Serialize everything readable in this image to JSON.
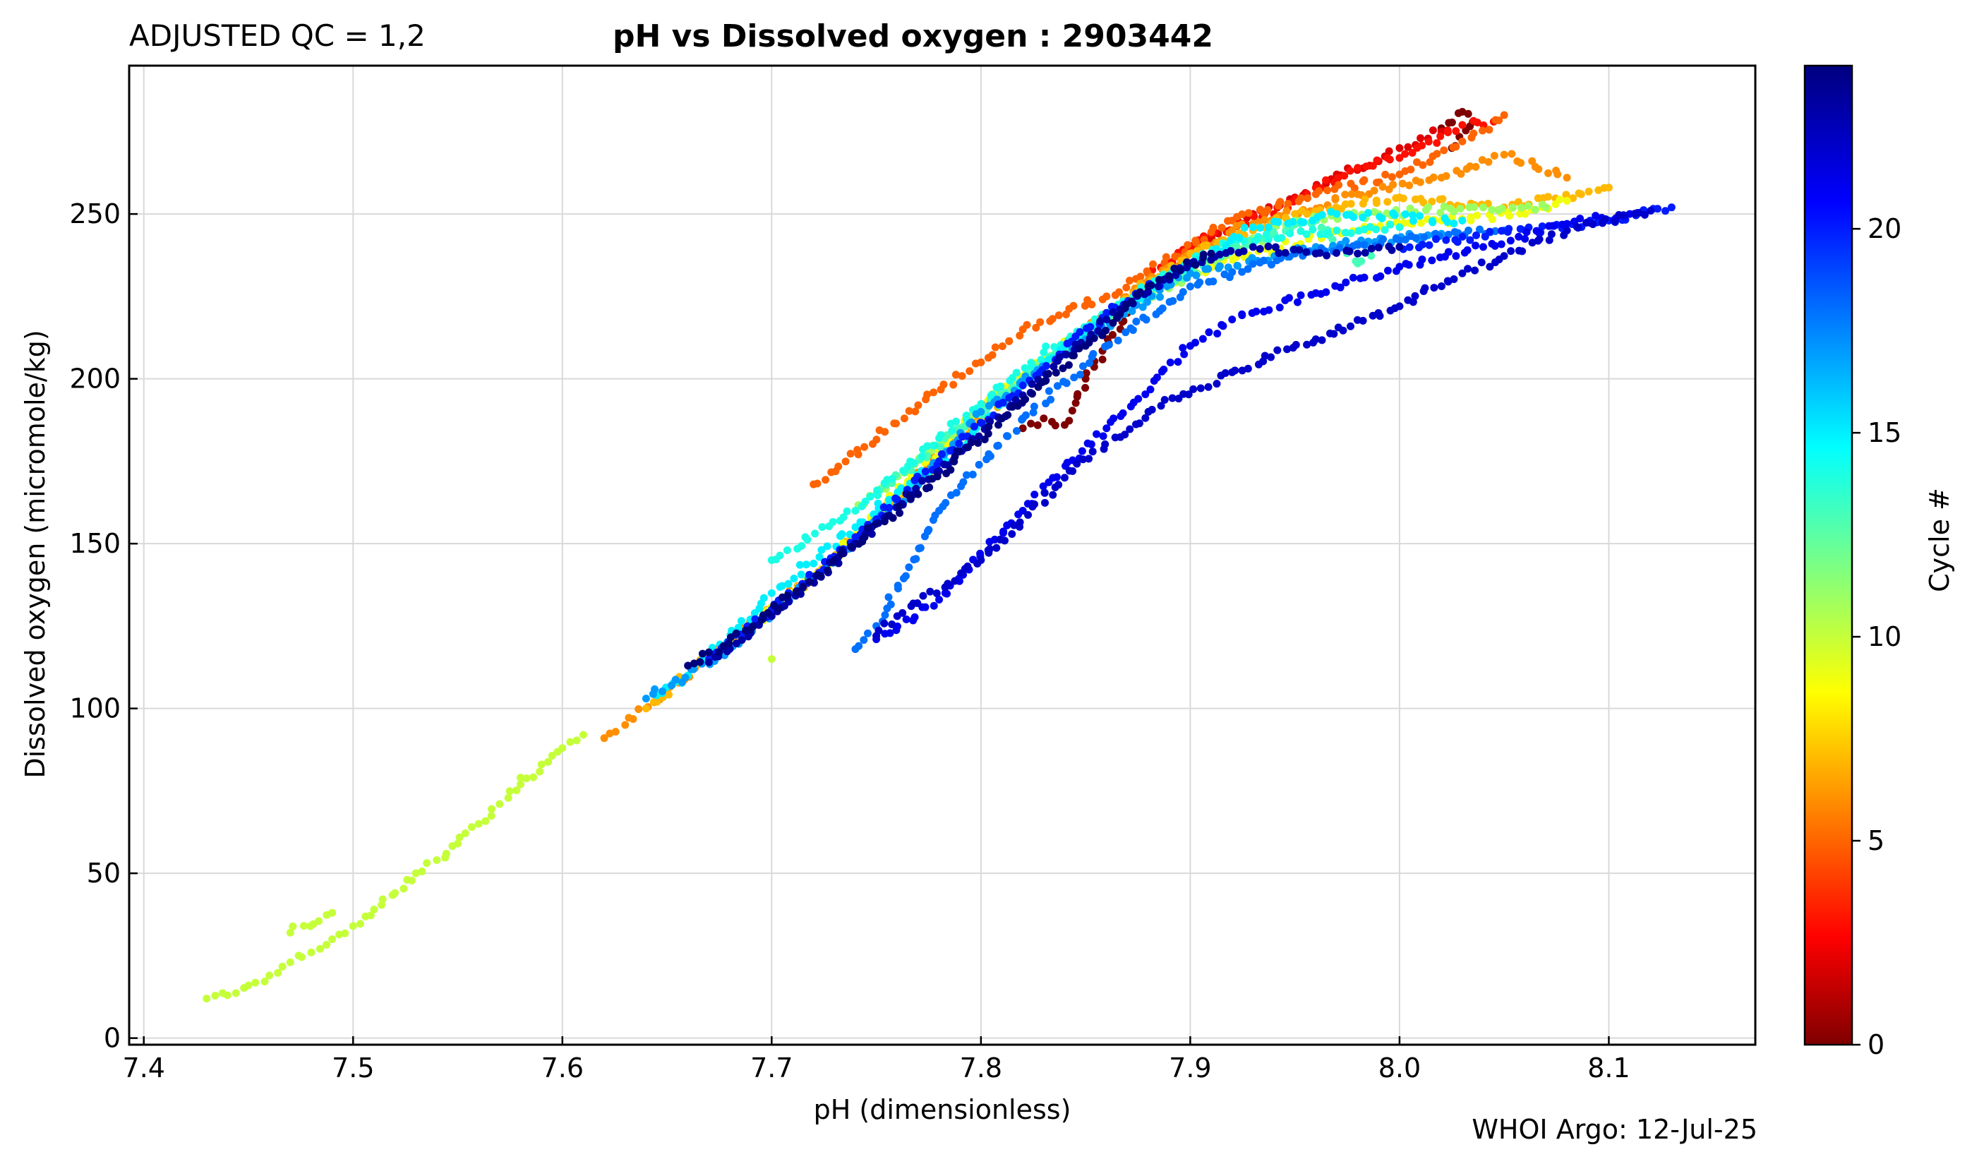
{
  "header": {
    "qc_label": "ADJUSTED QC = 1,2",
    "title": "pH vs Dissolved oxygen : 2903442"
  },
  "footer": {
    "credit": "WHOI Argo: 12-Jul-25"
  },
  "colorbar": {
    "label": "Cycle #",
    "range": [
      0,
      24
    ],
    "ticks": [
      "0",
      "5",
      "10",
      "15",
      "20"
    ],
    "colormap": "jet"
  },
  "colors": {
    "grid": "#d9d9d9",
    "axis": "#000000"
  },
  "chart_data": {
    "type": "scatter",
    "title": "pH vs Dissolved oxygen : 2903442",
    "xlabel": "pH  (dimensionless)",
    "ylabel": "Dissolved oxygen  (micromole/kg)",
    "xlim": [
      7.393,
      8.17
    ],
    "ylim": [
      -2,
      295
    ],
    "xticks": [
      "7.4",
      "7.5",
      "7.6",
      "7.7",
      "7.8",
      "7.9",
      "8.0",
      "8.1"
    ],
    "yticks": [
      "0",
      "50",
      "100",
      "150",
      "200",
      "250"
    ],
    "grid": true,
    "color_by": "cycle",
    "series": [
      {
        "cycle": 0,
        "points": [
          [
            7.82,
            185
          ],
          [
            7.83,
            188
          ],
          [
            7.84,
            186
          ],
          [
            7.85,
            200
          ],
          [
            7.87,
            220
          ],
          [
            8.02,
            276
          ],
          [
            8.03,
            281
          ],
          [
            8.035,
            278
          ],
          [
            8.025,
            270
          ]
        ]
      },
      {
        "cycle": 2,
        "points": [
          [
            7.9,
            238
          ],
          [
            7.93,
            250
          ],
          [
            7.95,
            255
          ],
          [
            7.97,
            262
          ],
          [
            7.99,
            266
          ],
          [
            8.0,
            270
          ],
          [
            8.01,
            273
          ],
          [
            8.02,
            275
          ]
        ]
      },
      {
        "cycle": 3,
        "points": [
          [
            7.88,
            232
          ],
          [
            7.91,
            244
          ],
          [
            7.94,
            250
          ],
          [
            7.96,
            258
          ],
          [
            7.98,
            264
          ],
          [
            8.0,
            267
          ],
          [
            8.03,
            277
          ],
          [
            8.045,
            278
          ]
        ]
      },
      {
        "cycle": 5,
        "points": [
          [
            7.72,
            168
          ],
          [
            7.77,
            192
          ],
          [
            7.8,
            205
          ],
          [
            7.82,
            215
          ],
          [
            7.86,
            225
          ],
          [
            7.92,
            248
          ],
          [
            7.96,
            256
          ],
          [
            8.0,
            262
          ],
          [
            8.03,
            272
          ],
          [
            8.05,
            280
          ]
        ]
      },
      {
        "cycle": 6,
        "points": [
          [
            7.62,
            91
          ],
          [
            7.63,
            95
          ],
          [
            7.65,
            105
          ],
          [
            7.67,
            116
          ],
          [
            7.7,
            130
          ],
          [
            7.73,
            145
          ],
          [
            7.76,
            165
          ],
          [
            7.8,
            190
          ],
          [
            7.84,
            210
          ],
          [
            7.88,
            230
          ],
          [
            7.92,
            245
          ],
          [
            7.98,
            256
          ],
          [
            8.02,
            261
          ],
          [
            8.05,
            268
          ],
          [
            8.08,
            261
          ]
        ]
      },
      {
        "cycle": 7,
        "points": [
          [
            7.64,
            100
          ],
          [
            7.66,
            110
          ],
          [
            7.69,
            125
          ],
          [
            7.72,
            140
          ],
          [
            7.75,
            158
          ],
          [
            7.78,
            175
          ],
          [
            7.82,
            200
          ],
          [
            7.86,
            220
          ],
          [
            7.9,
            238
          ],
          [
            7.95,
            250
          ],
          [
            8.0,
            255
          ],
          [
            8.05,
            252
          ],
          [
            8.1,
            258
          ]
        ]
      },
      {
        "cycle": 9,
        "points": [
          [
            7.68,
            120
          ],
          [
            7.72,
            140
          ],
          [
            7.76,
            165
          ],
          [
            7.8,
            192
          ],
          [
            7.85,
            215
          ],
          [
            7.9,
            232
          ],
          [
            7.97,
            245
          ],
          [
            8.02,
            248
          ],
          [
            8.06,
            250
          ],
          [
            8.08,
            254
          ]
        ]
      },
      {
        "cycle": 10,
        "points": [
          [
            7.43,
            12
          ],
          [
            7.44,
            13
          ],
          [
            7.45,
            16
          ],
          [
            7.46,
            19
          ],
          [
            7.47,
            23
          ],
          [
            7.48,
            26
          ],
          [
            7.49,
            30
          ],
          [
            7.5,
            34
          ],
          [
            7.51,
            39
          ],
          [
            7.52,
            44
          ],
          [
            7.53,
            50
          ],
          [
            7.54,
            54
          ],
          [
            7.55,
            59
          ],
          [
            7.56,
            65
          ],
          [
            7.57,
            71
          ],
          [
            7.58,
            77
          ],
          [
            7.59,
            83
          ],
          [
            7.6,
            88
          ],
          [
            7.61,
            92
          ],
          [
            7.7,
            115
          ],
          [
            7.58,
            79
          ],
          [
            7.49,
            38
          ],
          [
            7.47,
            32
          ]
        ]
      },
      {
        "cycle": 11,
        "points": [
          [
            7.74,
            160
          ],
          [
            7.78,
            180
          ],
          [
            7.82,
            200
          ],
          [
            7.86,
            218
          ],
          [
            7.9,
            232
          ],
          [
            7.95,
            248
          ],
          [
            7.99,
            250
          ],
          [
            8.04,
            252
          ],
          [
            8.07,
            252
          ]
        ]
      },
      {
        "cycle": 13,
        "points": [
          [
            7.75,
            165
          ],
          [
            7.79,
            185
          ],
          [
            7.83,
            205
          ],
          [
            7.87,
            222
          ],
          [
            7.92,
            240
          ],
          [
            7.96,
            248
          ],
          [
            7.98,
            235
          ],
          [
            7.99,
            241
          ]
        ]
      },
      {
        "cycle": 14,
        "points": [
          [
            7.7,
            145
          ],
          [
            7.74,
            160
          ],
          [
            7.78,
            182
          ],
          [
            7.83,
            208
          ],
          [
            7.88,
            228
          ],
          [
            7.92,
            242
          ],
          [
            7.97,
            245
          ],
          [
            8.0,
            246
          ]
        ]
      },
      {
        "cycle": 15,
        "points": [
          [
            7.645,
            104
          ],
          [
            7.66,
            110
          ],
          [
            7.7,
            135
          ],
          [
            7.74,
            155
          ],
          [
            7.79,
            180
          ],
          [
            7.84,
            210
          ],
          [
            7.89,
            230
          ],
          [
            7.93,
            246
          ],
          [
            7.97,
            250
          ],
          [
            8.03,
            248
          ]
        ]
      },
      {
        "cycle": 17,
        "points": [
          [
            7.64,
            103
          ],
          [
            7.68,
            118
          ],
          [
            7.72,
            140
          ],
          [
            7.76,
            162
          ],
          [
            7.8,
            190
          ],
          [
            7.85,
            212
          ],
          [
            7.9,
            232
          ],
          [
            7.96,
            240
          ],
          [
            8.02,
            244
          ]
        ]
      },
      {
        "cycle": 18,
        "points": [
          [
            7.74,
            118
          ],
          [
            7.75,
            125
          ],
          [
            7.78,
            160
          ],
          [
            7.82,
            188
          ],
          [
            7.86,
            210
          ],
          [
            7.9,
            228
          ],
          [
            7.95,
            238
          ],
          [
            8.0,
            242
          ],
          [
            8.05,
            245
          ]
        ]
      },
      {
        "cycle": 20,
        "points": [
          [
            7.67,
            115
          ],
          [
            7.7,
            130
          ],
          [
            7.74,
            152
          ],
          [
            7.78,
            175
          ],
          [
            7.82,
            198
          ],
          [
            7.86,
            220
          ],
          [
            7.9,
            235
          ],
          [
            8.0,
            240
          ],
          [
            8.06,
            245
          ],
          [
            8.1,
            248
          ],
          [
            8.13,
            252
          ]
        ]
      },
      {
        "cycle": 21,
        "points": [
          [
            7.75,
            121
          ],
          [
            7.78,
            133
          ],
          [
            7.82,
            160
          ],
          [
            7.86,
            185
          ],
          [
            7.9,
            210
          ],
          [
            7.92,
            218
          ],
          [
            7.96,
            226
          ],
          [
            8.0,
            234
          ],
          [
            8.04,
            240
          ],
          [
            8.08,
            247
          ],
          [
            8.11,
            250
          ]
        ]
      },
      {
        "cycle": 22,
        "points": [
          [
            7.75,
            122
          ],
          [
            7.76,
            128
          ],
          [
            7.8,
            145
          ],
          [
            7.84,
            170
          ],
          [
            7.88,
            190
          ],
          [
            7.92,
            202
          ],
          [
            7.96,
            212
          ],
          [
            8.0,
            222
          ],
          [
            8.03,
            232
          ],
          [
            8.08,
            245
          ],
          [
            8.12,
            251
          ]
        ]
      },
      {
        "cycle": 23,
        "points": [
          [
            7.67,
            114
          ],
          [
            7.7,
            128
          ],
          [
            7.74,
            150
          ],
          [
            7.78,
            172
          ],
          [
            7.82,
            195
          ],
          [
            7.86,
            218
          ],
          [
            7.9,
            235
          ],
          [
            7.93,
            240
          ],
          [
            7.96,
            238
          ],
          [
            7.98,
            238
          ],
          [
            8.0,
            240
          ]
        ]
      },
      {
        "cycle": 24,
        "points": [
          [
            7.66,
            113
          ],
          [
            7.69,
            124
          ],
          [
            7.73,
            145
          ],
          [
            7.77,
            165
          ],
          [
            7.81,
            188
          ],
          [
            7.85,
            210
          ],
          [
            7.88,
            228
          ],
          [
            7.91,
            238
          ]
        ]
      }
    ]
  }
}
